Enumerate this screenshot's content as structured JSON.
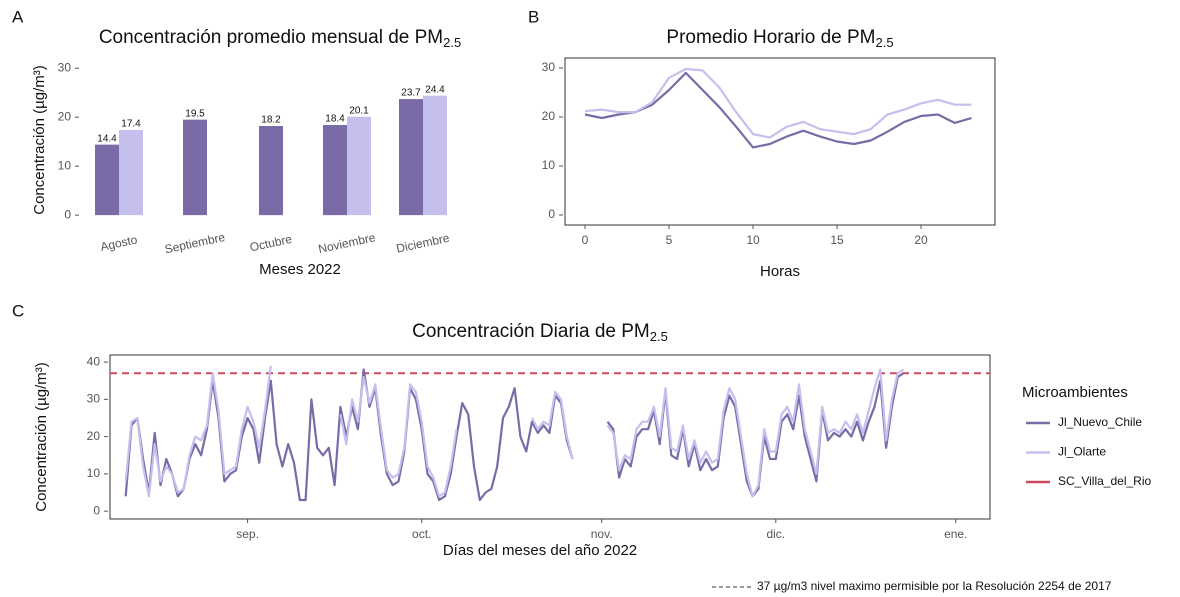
{
  "chart_data": [
    {
      "type": "bar",
      "panel": "A",
      "title": "Concentración promedio mensual de PM",
      "title_sub": "2.5",
      "x_label": "Meses 2022",
      "y_label": "Concentración (µg/m³)",
      "categories": [
        "Agosto",
        "Septiembre",
        "Octubre",
        "Noviembre",
        "Diciembre"
      ],
      "series": [
        {
          "name": "Jl_Nuevo_Chile",
          "color": "#7a6aa6",
          "values": [
            14.4,
            19.5,
            18.2,
            18.4,
            23.7
          ]
        },
        {
          "name": "Jl_Olarte",
          "color": "#c5bfee",
          "values": [
            17.4,
            null,
            null,
            20.1,
            24.4
          ]
        }
      ],
      "ylim": [
        -1.4,
        32.7
      ],
      "yticks": [
        0,
        10,
        20,
        30
      ]
    },
    {
      "type": "line",
      "panel": "B",
      "title": "Promedio Horario de PM",
      "title_sub": "2.5",
      "x_label": "Horas",
      "x": [
        0,
        1,
        2,
        3,
        4,
        5,
        6,
        7,
        8,
        9,
        10,
        11,
        12,
        13,
        14,
        15,
        16,
        17,
        18,
        19,
        20,
        21,
        22,
        23
      ],
      "series": [
        {
          "name": "Jl_Nuevo_Chile",
          "color": "#7a6aa6",
          "values": [
            20.5,
            19.8,
            20.5,
            21,
            22.5,
            25.5,
            29,
            25.5,
            22,
            18,
            13.8,
            14.5,
            16,
            17.2,
            16,
            15,
            14.5,
            15.2,
            17,
            19,
            20.2,
            20.5,
            18.8,
            19.8
          ]
        },
        {
          "name": "Jl_Olarte",
          "color": "#c5bfee",
          "values": [
            21.2,
            21.5,
            21,
            21,
            23,
            28,
            29.8,
            29.5,
            26,
            21,
            16.5,
            15.8,
            18,
            19,
            17.5,
            17,
            16.5,
            17.5,
            20.5,
            21.5,
            22.8,
            23.5,
            22.5,
            22.5
          ]
        }
      ],
      "xlim": [
        -1.19,
        24.4
      ],
      "xticks": [
        0,
        5,
        10,
        15,
        20
      ],
      "ylim": [
        -2.04,
        32.04
      ],
      "yticks": [
        0,
        10,
        20,
        30
      ]
    },
    {
      "type": "line",
      "panel": "C",
      "title": "Concentración Diaria de PM",
      "title_sub": "2.5",
      "x_label": "Días del meses del año 2022",
      "y_label": "Concentración  (µg/m³)",
      "legend": "right",
      "legend_title": "Microambientes",
      "footnote": "37 µg/m3 nivel maximo permisible por la Resolución 2254 de 2017",
      "x": [
        223,
        224,
        225,
        226,
        227,
        228,
        229,
        230,
        231,
        232,
        233,
        234,
        235,
        236,
        237,
        238,
        239,
        240,
        241,
        242,
        243,
        244,
        245,
        246,
        247,
        248,
        249,
        250,
        251,
        252,
        253,
        254,
        255,
        256,
        257,
        258,
        259,
        260,
        261,
        262,
        263,
        264,
        265,
        266,
        267,
        268,
        269,
        270,
        271,
        272,
        273,
        274,
        275,
        276,
        277,
        278,
        279,
        280,
        281,
        282,
        283,
        284,
        285,
        286,
        287,
        288,
        289,
        290,
        291,
        292,
        293,
        294,
        295,
        296,
        297,
        298,
        299,
        300,
        301,
        302,
        303,
        304,
        305,
        306,
        307,
        308,
        309,
        310,
        311,
        312,
        313,
        314,
        315,
        316,
        317,
        318,
        319,
        320,
        321,
        322,
        323,
        324,
        325,
        326,
        327,
        328,
        329,
        330,
        331,
        332,
        333,
        334,
        335,
        336,
        337,
        338,
        339,
        340,
        341,
        342,
        343,
        344,
        345,
        346,
        347,
        348,
        349,
        350,
        351,
        352,
        353,
        354,
        355,
        356,
        357
      ],
      "series": [
        {
          "name": "Jl_Nuevo_Chile",
          "color": "#7a6aa6",
          "values": [
            4,
            23,
            25,
            14,
            5,
            21,
            7,
            14,
            10,
            4,
            6,
            14,
            18,
            15,
            22,
            35,
            25,
            8,
            10,
            11,
            20,
            25,
            22,
            13,
            25,
            35,
            18,
            12,
            18,
            13,
            3,
            3,
            30,
            17,
            15,
            17,
            7,
            28,
            20,
            28,
            22,
            38,
            28,
            33,
            20,
            10,
            7,
            8,
            16,
            33,
            30,
            22,
            10,
            8,
            3,
            4,
            10,
            20,
            29,
            26,
            12,
            3,
            5,
            6,
            12,
            25,
            28,
            33,
            20,
            16,
            24,
            21,
            23,
            21,
            31,
            29,
            19,
            14,
            null,
            null,
            null,
            null,
            null,
            24,
            22,
            9,
            14,
            12,
            20,
            22,
            22,
            27,
            18,
            32,
            15,
            14,
            22,
            12,
            18,
            11,
            14,
            11,
            12,
            25,
            31,
            28,
            18,
            8,
            4,
            6,
            20,
            14,
            14,
            24,
            26,
            22,
            31,
            20,
            14,
            8,
            27,
            19,
            21,
            20,
            22,
            20,
            24,
            19,
            24,
            28,
            35,
            17,
            28,
            36,
            37
          ]
        },
        {
          "name": "Jl_Olarte",
          "color": "#c5bfee",
          "values": [
            8,
            24,
            25,
            12,
            4,
            18,
            8,
            12,
            10,
            5,
            6,
            15,
            20,
            19,
            23,
            37,
            27,
            10,
            11,
            12,
            22,
            28,
            24,
            17,
            27,
            39,
            null,
            null,
            null,
            null,
            null,
            null,
            null,
            null,
            null,
            null,
            null,
            26,
            18,
            30,
            24,
            36,
            29,
            34,
            22,
            11,
            9,
            10,
            17,
            34,
            32,
            24,
            12,
            9,
            4,
            5,
            12,
            22,
            null,
            null,
            null,
            null,
            null,
            null,
            null,
            null,
            null,
            null,
            null,
            null,
            25,
            22,
            24,
            23,
            32,
            30,
            20,
            14,
            null,
            null,
            null,
            null,
            null,
            23,
            21,
            11,
            15,
            14,
            22,
            24,
            24,
            28,
            20,
            33,
            17,
            16,
            23,
            14,
            19,
            13,
            16,
            13,
            14,
            27,
            33,
            30,
            20,
            10,
            4,
            7,
            22,
            16,
            16,
            26,
            28,
            24,
            34,
            22,
            16,
            10,
            28,
            21,
            22,
            21,
            24,
            22,
            26,
            21,
            27,
            33,
            38,
            19,
            30,
            37,
            38
          ]
        }
      ],
      "threshold": {
        "name": "SC_Villa_del_Rio",
        "value": 37,
        "color": "#cc4a5e"
      },
      "xlim": [
        220.3,
        371.9
      ],
      "xticks": [
        {
          "value": 244,
          "label": "sep."
        },
        {
          "value": 274,
          "label": "oct."
        },
        {
          "value": 305,
          "label": "nov."
        },
        {
          "value": 335,
          "label": "dic."
        },
        {
          "value": 366,
          "label": "ene."
        }
      ],
      "ylim": [
        -2.1,
        41.9
      ],
      "yticks": [
        0,
        10,
        20,
        30,
        40
      ]
    }
  ]
}
